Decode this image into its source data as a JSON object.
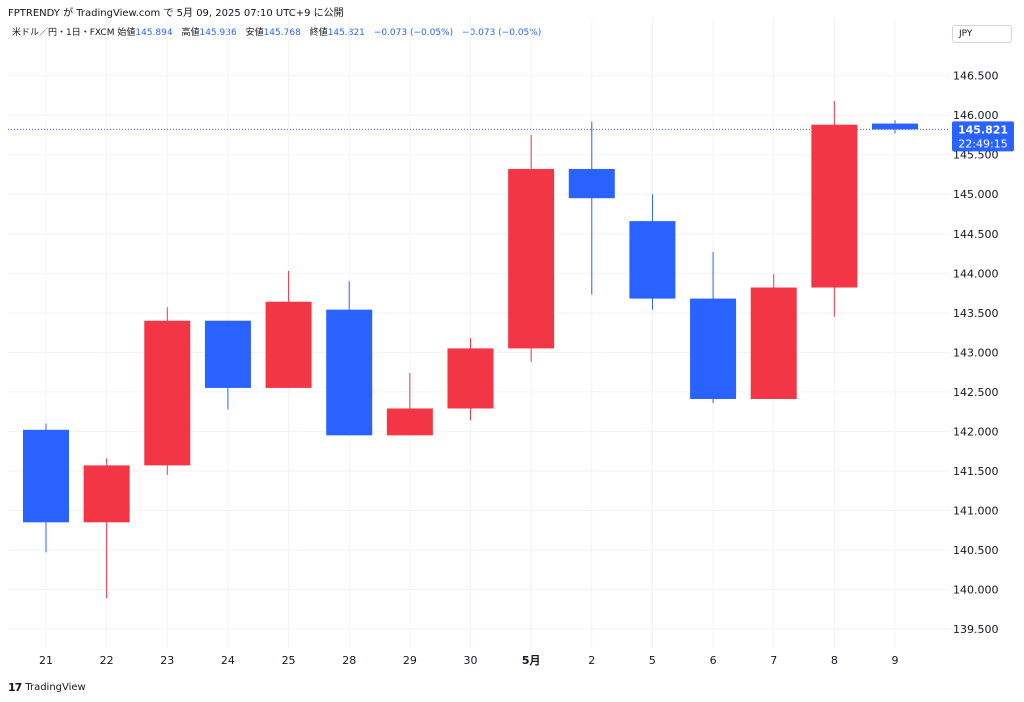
{
  "header": {
    "credit": "FPTRENDY が TradingView.com で 5月 09, 2025 07:10 UTC+9 に公開"
  },
  "legend": {
    "symbol": "米ドル／円・1日・FXCM",
    "open_label": "始値",
    "open_value": "145.894",
    "high_label": "高値",
    "high_value": "145.936",
    "low_label": "安値",
    "low_value": "145.768",
    "close_label": "終値",
    "close_value": "145.821",
    "change": "−0.073 (−0.05%)",
    "change_repeat": "−0.073 (−0.05%)"
  },
  "currency_badge": "JPY",
  "price_label": {
    "price": "145.821",
    "countdown": "22:49:15"
  },
  "footer": {
    "brand": "TradingView",
    "logo_icon": "tradingview-logo-icon"
  },
  "colors": {
    "up": "#f23645",
    "down": "#2962ff",
    "grid": "#f0f3fa",
    "axis_text": "#131722",
    "last_price": "#2962ff"
  },
  "chart_data": {
    "type": "candlestick",
    "x": [
      "21",
      "22",
      "23",
      "24",
      "25",
      "28",
      "29",
      "30",
      "5月",
      "2",
      "5",
      "6",
      "7",
      "8",
      "9"
    ],
    "ohlc": [
      {
        "x": "21",
        "open": 142.02,
        "high": 142.1,
        "low": 140.47,
        "close": 140.85
      },
      {
        "x": "22",
        "open": 140.85,
        "high": 141.66,
        "low": 139.89,
        "close": 141.57
      },
      {
        "x": "23",
        "open": 141.57,
        "high": 143.57,
        "low": 141.45,
        "close": 143.4
      },
      {
        "x": "24",
        "open": 143.4,
        "high": 143.4,
        "low": 142.28,
        "close": 142.55
      },
      {
        "x": "25",
        "open": 142.55,
        "high": 144.03,
        "low": 142.55,
        "close": 143.64
      },
      {
        "x": "28",
        "open": 143.54,
        "high": 143.9,
        "low": 141.95,
        "close": 141.95
      },
      {
        "x": "29",
        "open": 141.95,
        "high": 142.74,
        "low": 141.95,
        "close": 142.29
      },
      {
        "x": "30",
        "open": 142.29,
        "high": 143.18,
        "low": 142.14,
        "close": 143.05
      },
      {
        "x": "5月",
        "open": 143.05,
        "high": 145.75,
        "low": 142.88,
        "close": 145.32
      },
      {
        "x": "2",
        "open": 145.32,
        "high": 145.92,
        "low": 143.73,
        "close": 144.95
      },
      {
        "x": "5",
        "open": 144.66,
        "high": 145.0,
        "low": 143.54,
        "close": 143.68
      },
      {
        "x": "6",
        "open": 143.68,
        "high": 144.27,
        "low": 142.36,
        "close": 142.41
      },
      {
        "x": "7",
        "open": 142.41,
        "high": 143.99,
        "low": 142.41,
        "close": 143.82
      },
      {
        "x": "8",
        "open": 143.82,
        "high": 146.18,
        "low": 143.45,
        "close": 145.88
      },
      {
        "x": "9",
        "open": 145.894,
        "high": 145.936,
        "low": 145.768,
        "close": 145.821
      }
    ],
    "y_ticks": [
      "139.500",
      "140.000",
      "140.500",
      "141.000",
      "141.500",
      "142.000",
      "142.500",
      "143.000",
      "143.500",
      "144.000",
      "144.500",
      "145.000",
      "145.500",
      "146.000",
      "146.500"
    ],
    "ylim": [
      139.26,
      146.85
    ],
    "last_price": 145.821,
    "grid": true
  }
}
